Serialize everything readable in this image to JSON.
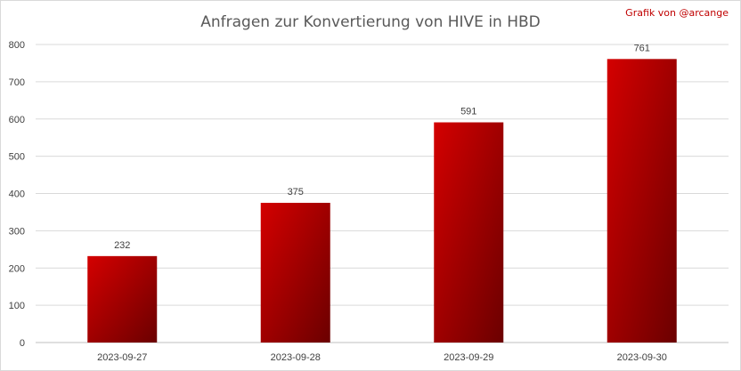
{
  "chart_data": {
    "type": "bar",
    "title": "Anfragen zur Konvertierung von HIVE in HBD",
    "credit": "Grafik von @arcange",
    "categories": [
      "2023-09-27",
      "2023-09-28",
      "2023-09-29",
      "2023-09-30"
    ],
    "values": [
      232,
      375,
      591,
      761
    ],
    "data_labels": [
      "232",
      "375",
      "591",
      "761"
    ],
    "xlabel": "",
    "ylabel": "",
    "ylim": [
      0,
      800
    ],
    "yticks": [
      0,
      100,
      200,
      300,
      400,
      500,
      600,
      700,
      800
    ],
    "grid": true,
    "legend": "none"
  },
  "colors": {
    "bar_light": "#d40000",
    "bar_dark": "#6b0000",
    "credit": "#c00000",
    "grid": "#d9d9d9",
    "axis": "#bfbfbf"
  }
}
